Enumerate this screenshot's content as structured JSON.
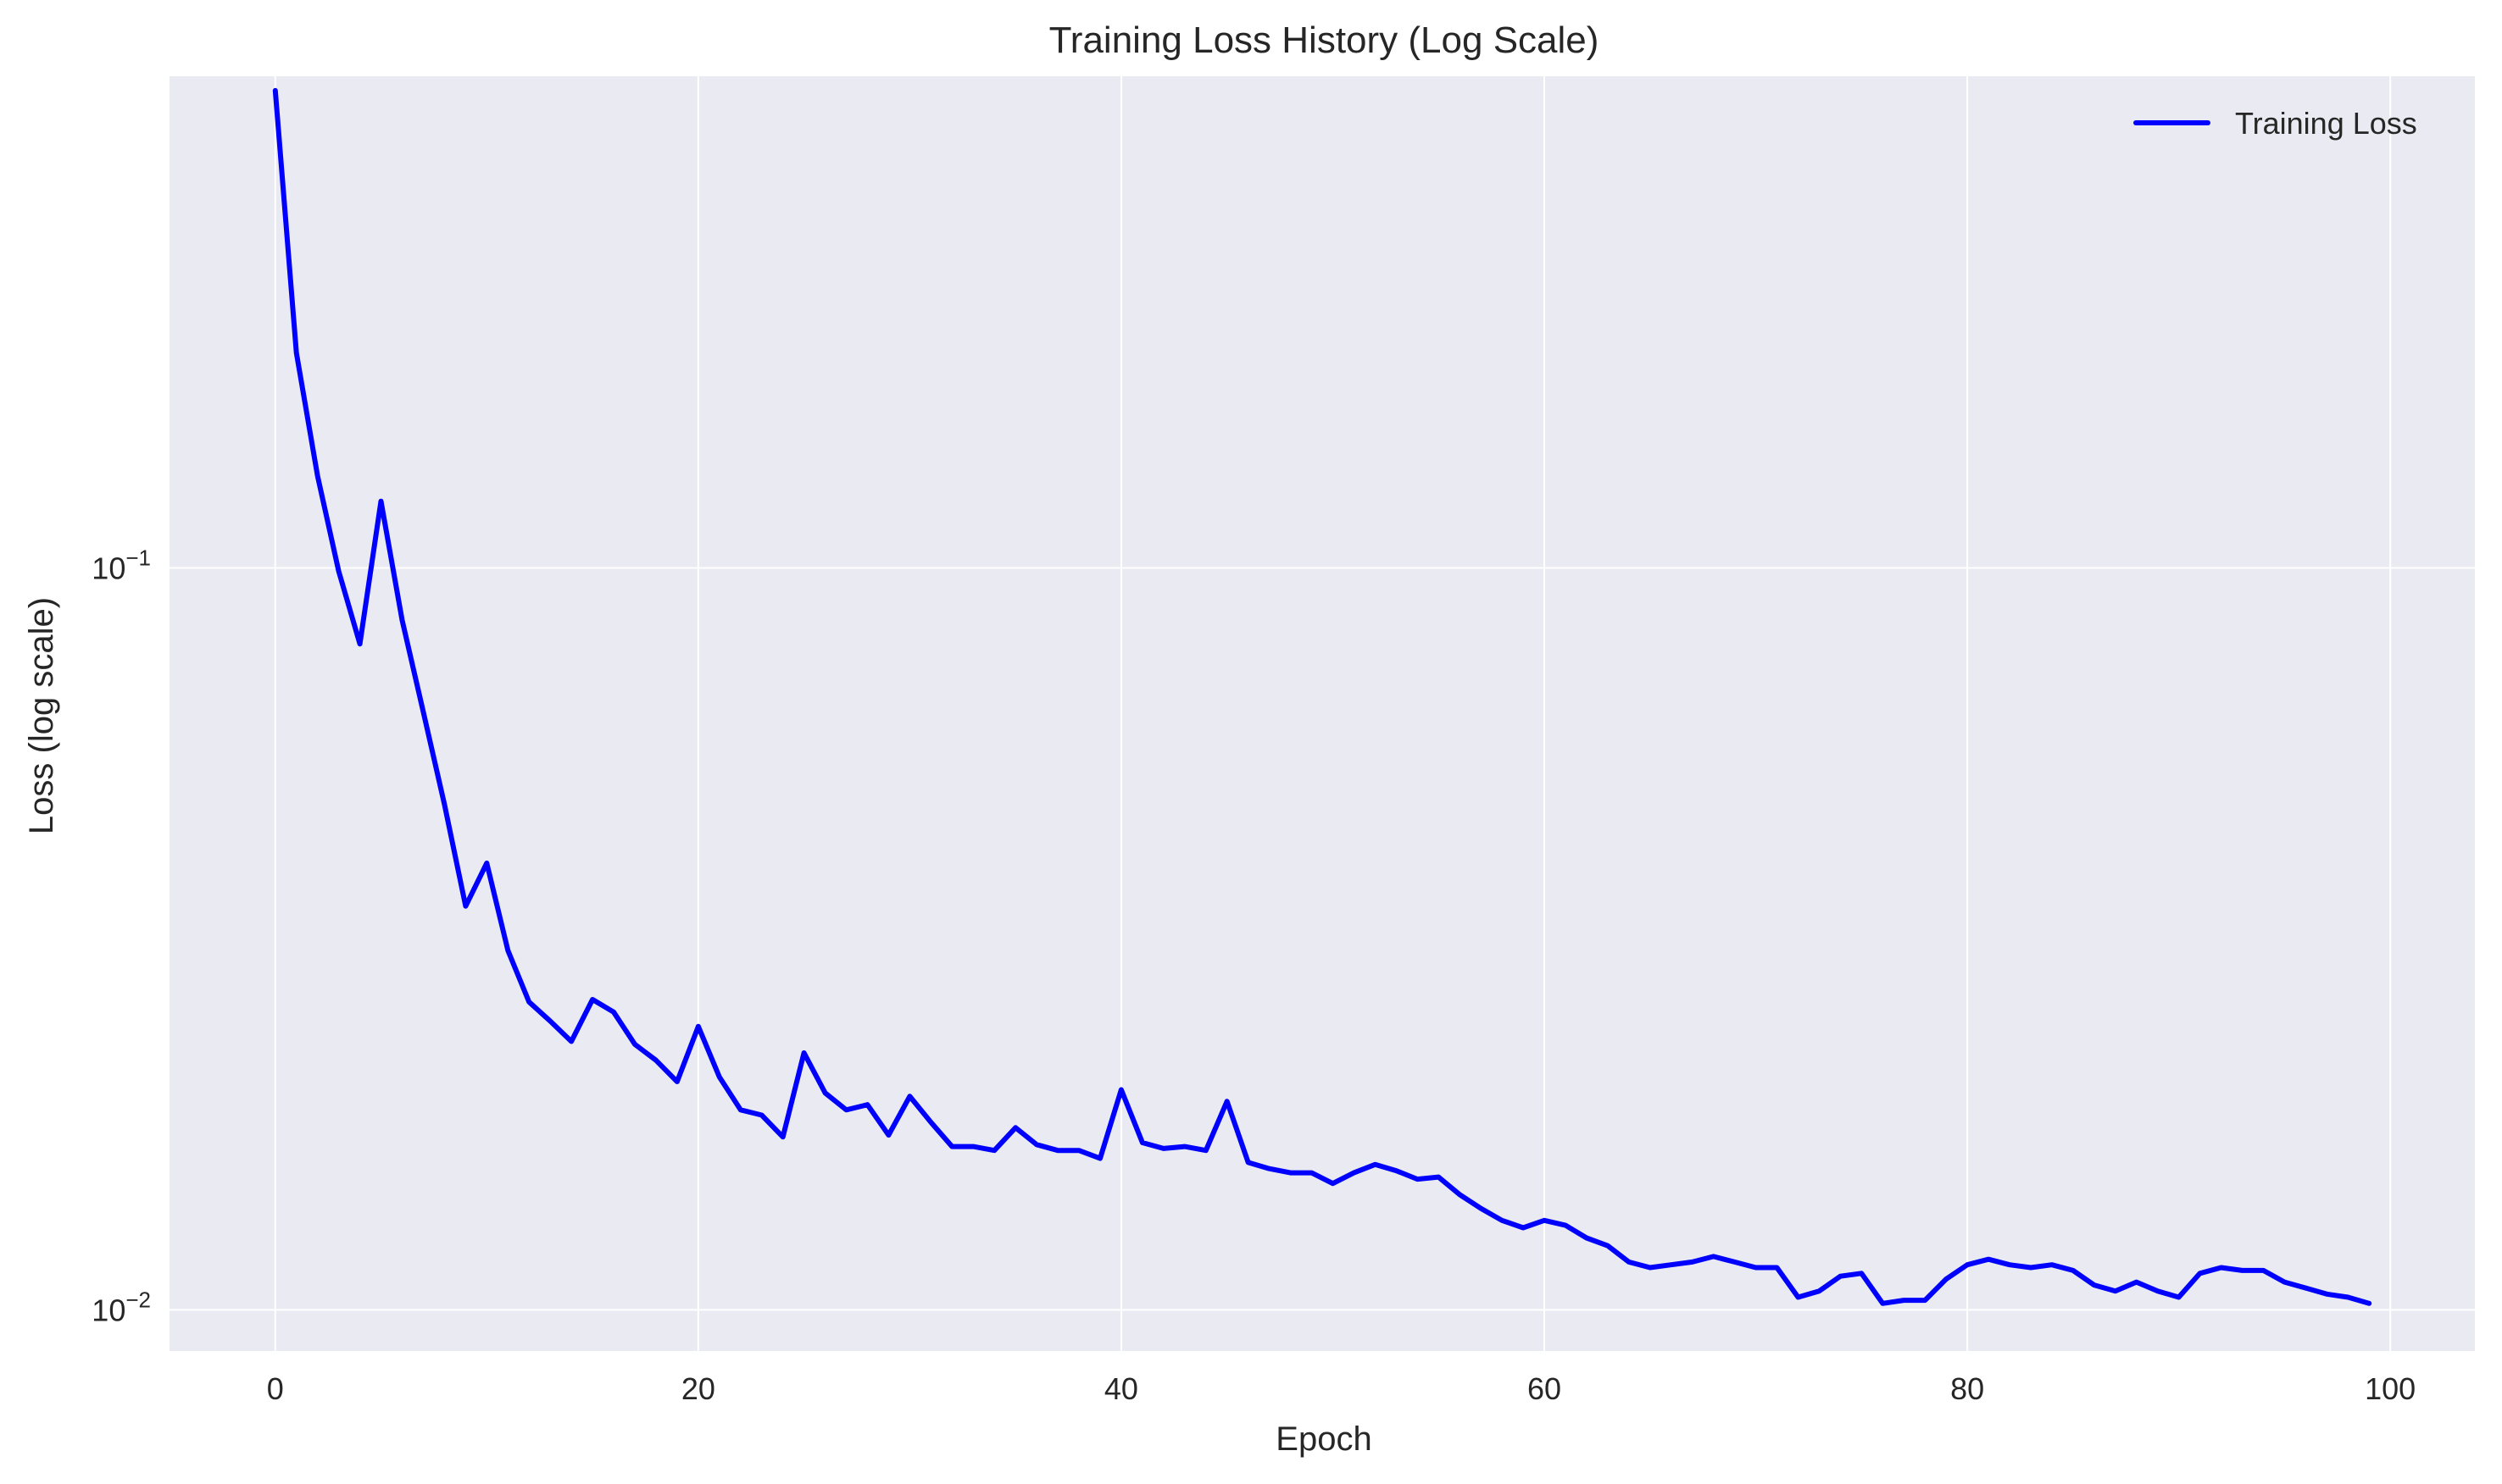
{
  "chart_data": {
    "type": "line",
    "title": "Training Loss History (Log Scale)",
    "xlabel": "Epoch",
    "ylabel": "Loss (log scale)",
    "xlim": [
      -5,
      104
    ],
    "ylim": [
      0.0088,
      0.46
    ],
    "yscale": "log",
    "grid": true,
    "legend": "top-right",
    "background": "#eaeaf2",
    "x_ticks": [
      {
        "value": 0,
        "label": "0"
      },
      {
        "value": 20,
        "label": "20"
      },
      {
        "value": 40,
        "label": "40"
      },
      {
        "value": 60,
        "label": "60"
      },
      {
        "value": 80,
        "label": "80"
      },
      {
        "value": 100,
        "label": "100"
      }
    ],
    "y_ticks": [
      {
        "value": 0.1,
        "base": "10",
        "exp": "−1"
      },
      {
        "value": 0.01,
        "base": "10",
        "exp": "−2"
      }
    ],
    "series": [
      {
        "name": "Training Loss",
        "color": "#0000ff",
        "x": [
          0,
          1,
          2,
          3,
          4,
          5,
          6,
          7,
          8,
          9,
          10,
          11,
          12,
          13,
          14,
          15,
          16,
          17,
          18,
          19,
          20,
          21,
          22,
          23,
          24,
          25,
          26,
          27,
          28,
          29,
          30,
          31,
          32,
          33,
          34,
          35,
          36,
          37,
          38,
          39,
          40,
          41,
          42,
          43,
          44,
          45,
          46,
          47,
          48,
          49,
          50,
          51,
          52,
          53,
          54,
          55,
          56,
          57,
          58,
          59,
          60,
          61,
          62,
          63,
          64,
          65,
          66,
          67,
          68,
          69,
          70,
          71,
          72,
          73,
          74,
          75,
          76,
          77,
          78,
          79,
          80,
          81,
          82,
          83,
          84,
          85,
          86,
          87,
          88,
          89,
          90,
          91,
          92,
          93,
          94,
          95,
          96,
          97,
          98,
          99
        ],
        "values": [
          0.44,
          0.195,
          0.133,
          0.099,
          0.079,
          0.123,
          0.085,
          0.064,
          0.048,
          0.035,
          0.04,
          0.0305,
          0.026,
          0.0245,
          0.023,
          0.0262,
          0.0252,
          0.0228,
          0.0217,
          0.0203,
          0.0241,
          0.0206,
          0.0186,
          0.0183,
          0.0171,
          0.0222,
          0.0196,
          0.0186,
          0.0189,
          0.0172,
          0.0194,
          0.0179,
          0.0166,
          0.0166,
          0.0164,
          0.0176,
          0.0167,
          0.0164,
          0.0164,
          0.016,
          0.0198,
          0.0168,
          0.0165,
          0.0166,
          0.0164,
          0.0191,
          0.0158,
          0.0155,
          0.0153,
          0.0153,
          0.0148,
          0.0153,
          0.0157,
          0.0154,
          0.015,
          0.0151,
          0.0143,
          0.0137,
          0.0132,
          0.0129,
          0.0132,
          0.013,
          0.0125,
          0.0122,
          0.0116,
          0.0114,
          0.0115,
          0.0116,
          0.0118,
          0.0116,
          0.0114,
          0.0114,
          0.0104,
          0.0106,
          0.0111,
          0.0112,
          0.0102,
          0.0103,
          0.0103,
          0.011,
          0.0115,
          0.0117,
          0.0115,
          0.0114,
          0.0115,
          0.0113,
          0.0108,
          0.0106,
          0.0109,
          0.0106,
          0.0104,
          0.0112,
          0.0114,
          0.0113,
          0.0113,
          0.0109,
          0.0107,
          0.0105,
          0.0104,
          0.0102
        ]
      }
    ]
  }
}
